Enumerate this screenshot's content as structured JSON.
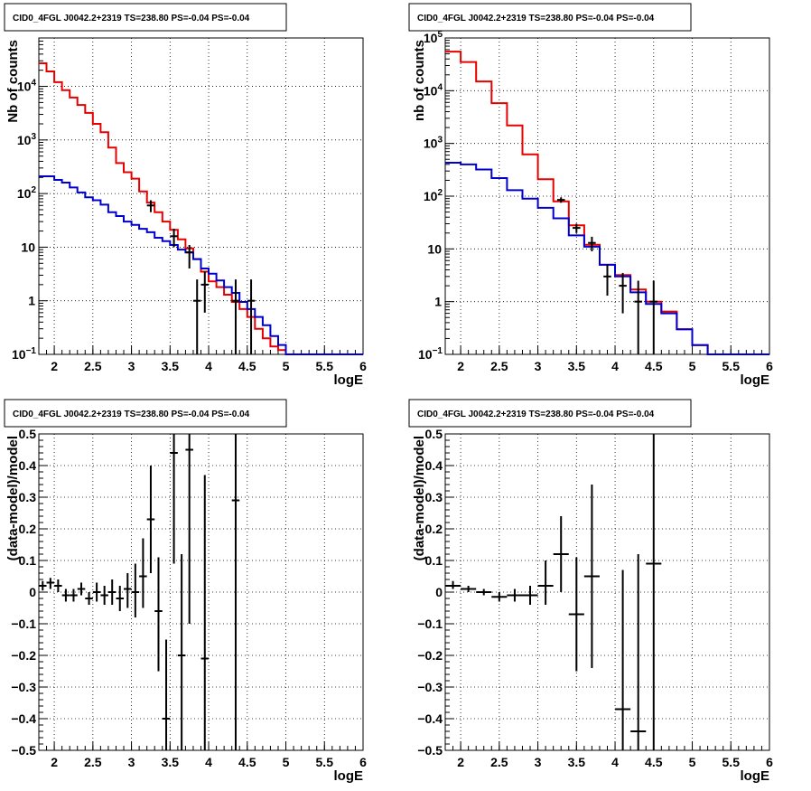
{
  "chart_data": [
    {
      "type": "line",
      "title": "CID0_4FGL J0042.2+2319 TS=238.80 PS=-0.04 PS=-0.04",
      "xlabel": "logE",
      "ylabel": "Nb of counts",
      "xlim": [
        1.8,
        6.0
      ],
      "ylim": [
        0.1,
        80000
      ],
      "yscale": "log",
      "grid": true,
      "x_ticks": [
        "2",
        "2.5",
        "3",
        "3.5",
        "4",
        "4.5",
        "5",
        "5.5",
        "6"
      ],
      "y_ticks": [
        {
          "v": 0.1,
          "m": "10",
          "e": "−1"
        },
        {
          "v": 1,
          "m": "1",
          "e": ""
        },
        {
          "v": 10,
          "m": "10",
          "e": ""
        },
        {
          "v": 100,
          "m": "10",
          "e": "2"
        },
        {
          "v": 1000,
          "m": "10",
          "e": "3"
        },
        {
          "v": 10000,
          "m": "10",
          "e": "4"
        }
      ],
      "bin_edges": [
        1.8,
        1.9,
        2.0,
        2.1,
        2.2,
        2.3,
        2.4,
        2.5,
        2.6,
        2.7,
        2.8,
        2.9,
        3.0,
        3.1,
        3.2,
        3.3,
        3.4,
        3.5,
        3.6,
        3.7,
        3.8,
        3.9,
        4.0,
        4.1,
        4.2,
        4.3,
        4.4,
        4.5,
        4.6,
        4.7,
        4.8,
        4.9,
        5.0,
        5.1,
        5.2,
        5.3,
        5.4,
        5.5,
        5.6,
        5.7,
        5.8,
        5.9,
        6.0
      ],
      "series": [
        {
          "color": "#e60000",
          "style": "step",
          "values": [
            27000,
            19000,
            12000,
            8500,
            6200,
            4500,
            3200,
            2000,
            1400,
            720,
            370,
            250,
            190,
            110,
            68,
            45,
            30,
            21,
            14,
            9.5,
            6,
            3.5,
            2.3,
            1.8,
            1.3,
            0.95,
            0.7,
            0.5,
            0.3,
            0.2,
            0.14,
            0.12,
            0.1,
            0.1,
            0.1,
            0.1,
            0.1,
            0.1,
            0.1,
            0.1,
            0.1,
            0.1
          ]
        },
        {
          "color": "#0000cc",
          "style": "step",
          "values": [
            210,
            210,
            180,
            160,
            130,
            105,
            85,
            75,
            62,
            45,
            38,
            30,
            26,
            22,
            19,
            15,
            13,
            11,
            9,
            8,
            6,
            4,
            3.2,
            2.4,
            1.8,
            1.4,
            0.95,
            0.7,
            0.5,
            0.35,
            0.22,
            0.15,
            0.1,
            0.1,
            0.1,
            0.1,
            0.1,
            0.1,
            0.1,
            0.1,
            0.1,
            0.1
          ]
        },
        {
          "color": "#000000",
          "style": "errorbar",
          "points": [
            {
              "x": 3.25,
              "y": 60,
              "lo": 45,
              "hi": 75
            },
            {
              "x": 3.55,
              "y": 16,
              "lo": 10,
              "hi": 22
            },
            {
              "x": 3.75,
              "y": 8,
              "lo": 4,
              "hi": 11
            },
            {
              "x": 3.85,
              "y": 1,
              "lo": 0.1,
              "hi": 2.5
            },
            {
              "x": 3.95,
              "y": 2,
              "lo": 0.6,
              "hi": 3.5
            },
            {
              "x": 4.35,
              "y": 1,
              "lo": 0.1,
              "hi": 2.5
            },
            {
              "x": 4.55,
              "y": 1,
              "lo": 0.1,
              "hi": 2.5
            }
          ]
        }
      ]
    },
    {
      "type": "line",
      "title": "CID0_4FGL J0042.2+2319 TS=238.80 PS=-0.04 PS=-0.04",
      "xlabel": "logE",
      "ylabel": "nb of counts",
      "xlim": [
        1.8,
        6.0
      ],
      "ylim": [
        0.1,
        100000
      ],
      "yscale": "log",
      "grid": true,
      "x_ticks": [
        "2",
        "2.5",
        "3",
        "3.5",
        "4",
        "4.5",
        "5",
        "5.5",
        "6"
      ],
      "y_ticks": [
        {
          "v": 0.1,
          "m": "10",
          "e": "−1"
        },
        {
          "v": 1,
          "m": "1",
          "e": ""
        },
        {
          "v": 10,
          "m": "10",
          "e": ""
        },
        {
          "v": 100,
          "m": "10",
          "e": "2"
        },
        {
          "v": 1000,
          "m": "10",
          "e": "3"
        },
        {
          "v": 10000,
          "m": "10",
          "e": "4"
        },
        {
          "v": 100000,
          "m": "10",
          "e": "5"
        }
      ],
      "bin_edges": [
        1.8,
        2.0,
        2.2,
        2.4,
        2.6,
        2.8,
        3.0,
        3.2,
        3.4,
        3.6,
        3.8,
        4.0,
        4.2,
        4.4,
        4.6,
        4.8,
        5.0,
        5.2,
        5.4,
        5.6,
        5.8,
        6.0
      ],
      "series": [
        {
          "color": "#e60000",
          "style": "step",
          "values": [
            55000,
            35000,
            15000,
            5800,
            2200,
            620,
            210,
            80,
            28,
            12,
            5,
            3.2,
            1.7,
            1.0,
            0.65,
            0.3,
            0.15,
            0.1,
            0.1,
            0.1,
            0.1
          ]
        },
        {
          "color": "#0000cc",
          "style": "step",
          "values": [
            430,
            400,
            320,
            220,
            130,
            90,
            60,
            38,
            18,
            11,
            5,
            3,
            1.5,
            0.9,
            0.6,
            0.3,
            0.15,
            0.1,
            0.1,
            0.1,
            0.1
          ]
        },
        {
          "color": "#000000",
          "style": "errorbar",
          "points": [
            {
              "x": 3.3,
              "y": 85,
              "lo": 75,
              "hi": 95
            },
            {
              "x": 3.5,
              "y": 25,
              "lo": 20,
              "hi": 30
            },
            {
              "x": 3.7,
              "y": 13,
              "lo": 9,
              "hi": 17
            },
            {
              "x": 3.9,
              "y": 3,
              "lo": 1.3,
              "hi": 5
            },
            {
              "x": 4.1,
              "y": 2,
              "lo": 0.6,
              "hi": 3.5
            },
            {
              "x": 4.3,
              "y": 1,
              "lo": 0.1,
              "hi": 2.5
            },
            {
              "x": 4.5,
              "y": 1,
              "lo": 0.1,
              "hi": 2.5
            }
          ]
        }
      ]
    },
    {
      "type": "scatter",
      "title": "CID0_4FGL J0042.2+2319 TS=238.80 PS=-0.04 PS=-0.04",
      "xlabel": "logE",
      "ylabel": "(data-model)/model",
      "xlim": [
        1.8,
        6.0
      ],
      "ylim": [
        -0.5,
        0.5
      ],
      "yscale": "linear",
      "grid": true,
      "x_ticks": [
        "2",
        "2.5",
        "3",
        "3.5",
        "4",
        "4.5",
        "5",
        "5.5",
        "6"
      ],
      "y_ticks": [
        "−0.5",
        "−0.4",
        "−0.3",
        "−0.2",
        "−0.1",
        "0",
        "0.1",
        "0.2",
        "0.3",
        "0.4",
        "0.5"
      ],
      "bin_width": 0.1,
      "series": [
        {
          "color": "#000000",
          "style": "errorbar",
          "points": [
            {
              "x": 1.85,
              "y": 0.02,
              "lo": 0.005,
              "hi": 0.035
            },
            {
              "x": 1.95,
              "y": 0.03,
              "lo": 0.01,
              "hi": 0.045
            },
            {
              "x": 2.05,
              "y": 0.02,
              "lo": 0.0,
              "hi": 0.04
            },
            {
              "x": 2.15,
              "y": -0.01,
              "lo": -0.03,
              "hi": 0.01
            },
            {
              "x": 2.25,
              "y": -0.01,
              "lo": -0.03,
              "hi": 0.01
            },
            {
              "x": 2.35,
              "y": 0.01,
              "lo": -0.01,
              "hi": 0.03
            },
            {
              "x": 2.45,
              "y": -0.02,
              "lo": -0.04,
              "hi": 0.0
            },
            {
              "x": 2.55,
              "y": 0.0,
              "lo": -0.03,
              "hi": 0.03
            },
            {
              "x": 2.65,
              "y": -0.01,
              "lo": -0.04,
              "hi": 0.02
            },
            {
              "x": 2.75,
              "y": 0.0,
              "lo": -0.04,
              "hi": 0.04
            },
            {
              "x": 2.85,
              "y": -0.02,
              "lo": -0.06,
              "hi": 0.02
            },
            {
              "x": 2.95,
              "y": 0.01,
              "lo": -0.05,
              "hi": 0.06
            },
            {
              "x": 3.05,
              "y": 0.0,
              "lo": -0.08,
              "hi": 0.09
            },
            {
              "x": 3.15,
              "y": 0.05,
              "lo": -0.05,
              "hi": 0.17
            },
            {
              "x": 3.25,
              "y": 0.23,
              "lo": 0.06,
              "hi": 0.4
            },
            {
              "x": 3.35,
              "y": -0.06,
              "lo": -0.25,
              "hi": 0.11
            },
            {
              "x": 3.45,
              "y": -0.4,
              "lo": -0.5,
              "hi": -0.15
            },
            {
              "x": 3.55,
              "y": 0.44,
              "lo": 0.09,
              "hi": 0.5
            },
            {
              "x": 3.65,
              "y": -0.2,
              "lo": -0.5,
              "hi": 0.12
            },
            {
              "x": 3.75,
              "y": 0.45,
              "lo": -0.1,
              "hi": 0.5
            },
            {
              "x": 3.95,
              "y": -0.21,
              "lo": -0.5,
              "hi": 0.37
            },
            {
              "x": 4.35,
              "y": 0.29,
              "lo": -0.5,
              "hi": 0.5
            }
          ]
        }
      ]
    },
    {
      "type": "scatter",
      "title": "CID0_4FGL J0042.2+2319 TS=238.80 PS=-0.04 PS=-0.04",
      "xlabel": "logE",
      "ylabel": "(data-model)/model",
      "xlim": [
        1.8,
        6.0
      ],
      "ylim": [
        -0.5,
        0.5
      ],
      "yscale": "linear",
      "grid": true,
      "x_ticks": [
        "2",
        "2.5",
        "3",
        "3.5",
        "4",
        "4.5",
        "5",
        "5.5",
        "6"
      ],
      "y_ticks": [
        "−0.5",
        "−0.4",
        "−0.3",
        "−0.2",
        "−0.1",
        "0",
        "0.1",
        "0.2",
        "0.3",
        "0.4",
        "0.5"
      ],
      "bin_width": 0.2,
      "series": [
        {
          "color": "#000000",
          "style": "errorbar",
          "points": [
            {
              "x": 1.9,
              "y": 0.02,
              "lo": 0.01,
              "hi": 0.035
            },
            {
              "x": 2.1,
              "y": 0.01,
              "lo": 0.0,
              "hi": 0.02
            },
            {
              "x": 2.3,
              "y": 0.0,
              "lo": -0.01,
              "hi": 0.01
            },
            {
              "x": 2.5,
              "y": -0.015,
              "lo": -0.03,
              "hi": 0.0
            },
            {
              "x": 2.7,
              "y": -0.01,
              "lo": -0.03,
              "hi": 0.01
            },
            {
              "x": 2.9,
              "y": -0.01,
              "lo": -0.04,
              "hi": 0.02
            },
            {
              "x": 3.1,
              "y": 0.02,
              "lo": -0.04,
              "hi": 0.1
            },
            {
              "x": 3.3,
              "y": 0.12,
              "lo": 0.0,
              "hi": 0.24
            },
            {
              "x": 3.5,
              "y": -0.07,
              "lo": -0.25,
              "hi": 0.11
            },
            {
              "x": 3.7,
              "y": 0.05,
              "lo": -0.24,
              "hi": 0.34
            },
            {
              "x": 4.1,
              "y": -0.37,
              "lo": -0.5,
              "hi": 0.07
            },
            {
              "x": 4.3,
              "y": -0.44,
              "lo": -0.5,
              "hi": 0.12
            },
            {
              "x": 4.5,
              "y": 0.09,
              "lo": -0.5,
              "hi": 0.5
            }
          ]
        }
      ]
    }
  ]
}
